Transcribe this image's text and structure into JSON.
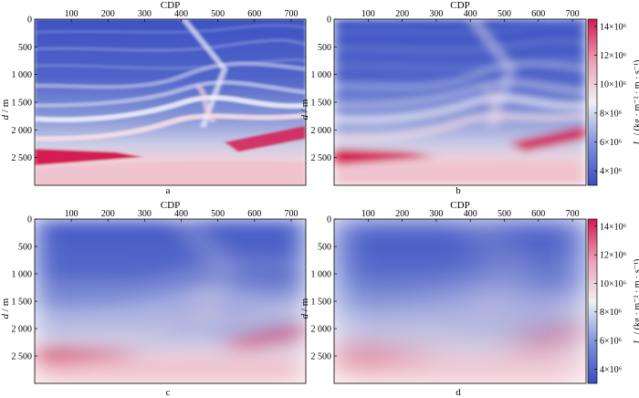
{
  "figure": {
    "x_axis_title": "CDP",
    "y_axis_title_symbol": "d",
    "y_axis_title_unit": "/ m",
    "x_ticks": [
      "100",
      "200",
      "300",
      "400",
      "500",
      "600",
      "700"
    ],
    "x_tick_values": [
      100,
      200,
      300,
      400,
      500,
      600,
      700
    ],
    "x_range": [
      0,
      740
    ],
    "y_ticks": [
      "0",
      "500",
      "1 000",
      "1 500",
      "2 000",
      "2 500"
    ],
    "y_tick_values": [
      0,
      500,
      1000,
      1500,
      2000,
      2500
    ],
    "y_range": [
      0,
      3000
    ],
    "colorbar": {
      "label_symbol": "I",
      "label_subscript": "p",
      "label_unit": "/ (kg · m⁻² · m · s⁻¹)",
      "ticks": [
        "14×10⁶",
        "12×10⁶",
        "10×10⁶",
        "8×10⁶",
        "6×10⁶",
        "4×10⁶"
      ],
      "tick_values": [
        14000000,
        12000000,
        10000000,
        8000000,
        6000000,
        4000000
      ],
      "range": [
        3000000,
        14500000
      ],
      "colors": {
        "low": "#3b4cc0",
        "mid": "#f2f2f2",
        "high": "#d41a52"
      }
    },
    "panels": [
      {
        "id": "a",
        "caption": "a"
      },
      {
        "id": "b",
        "caption": "b"
      },
      {
        "id": "c",
        "caption": "c"
      },
      {
        "id": "d",
        "caption": "d"
      }
    ]
  }
}
